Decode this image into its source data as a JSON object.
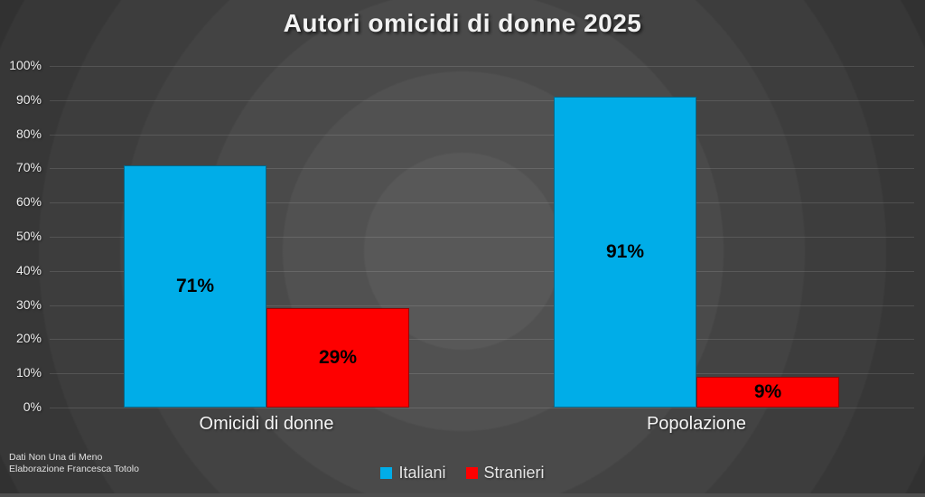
{
  "chart_data": {
    "type": "bar",
    "title": "Autori omicidi di donne 2025",
    "categories": [
      "Omicidi di donne",
      "Popolazione"
    ],
    "series": [
      {
        "name": "Italiani",
        "color": "#00ADE8",
        "values": [
          71,
          91
        ]
      },
      {
        "name": "Stranieri",
        "color": "#FE0000",
        "values": [
          29,
          9
        ]
      }
    ],
    "value_suffix": "%",
    "value_labels": [
      "71%",
      "29%",
      "91%",
      "9%"
    ],
    "ylim": [
      0,
      100
    ],
    "yticks": [
      "0%",
      "10%",
      "20%",
      "30%",
      "40%",
      "50%",
      "60%",
      "70%",
      "80%",
      "90%",
      "100%"
    ],
    "grid": true,
    "legend_position": "bottom"
  },
  "source": {
    "line1": "Dati Non Una di Meno",
    "line2": "Elaborazione Francesca Totolo"
  },
  "colors": {
    "background_center": "#585858",
    "background_edge": "#2b2b2b",
    "value_label_text": "#000000",
    "axis_text": "#ececec"
  }
}
